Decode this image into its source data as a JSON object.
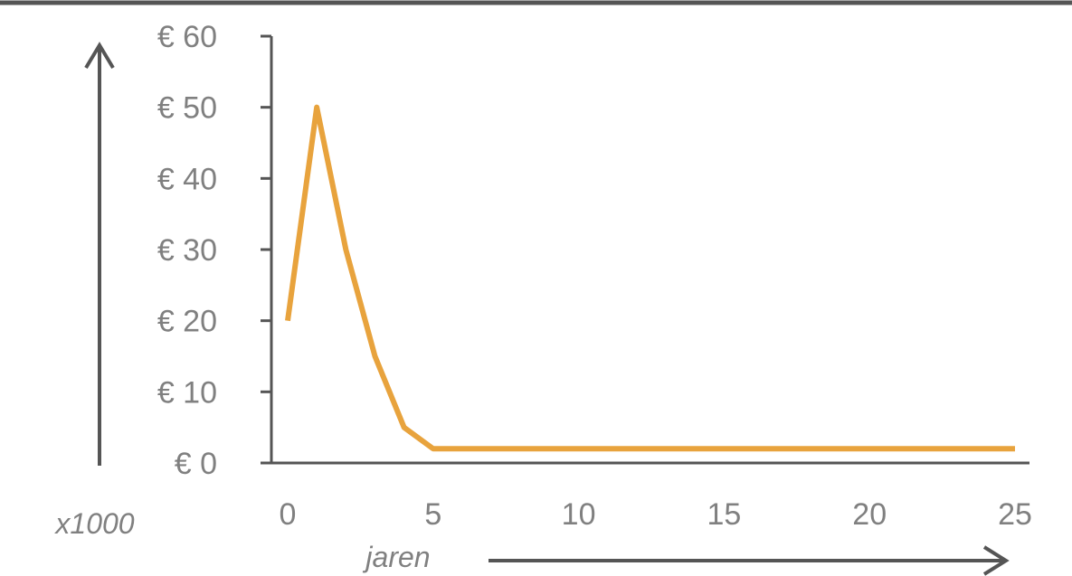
{
  "chart_data": {
    "type": "line",
    "title": "",
    "xlabel": "jaren",
    "ylabel": "",
    "y_unit_note": "x1000",
    "x": [
      0,
      1,
      2,
      3,
      4,
      5,
      6,
      7,
      8,
      9,
      10,
      11,
      12,
      13,
      14,
      15,
      16,
      17,
      18,
      19,
      20,
      21,
      22,
      23,
      24,
      25
    ],
    "series": [
      {
        "values": [
          20,
          50,
          30,
          15,
          5,
          2,
          2,
          2,
          2,
          2,
          2,
          2,
          2,
          2,
          2,
          2,
          2,
          2,
          2,
          2,
          2,
          2,
          2,
          2,
          2,
          2
        ],
        "color": "#e8a33d"
      }
    ],
    "xlim": [
      0,
      25
    ],
    "ylim": [
      0,
      60
    ],
    "x_ticks": [
      0,
      5,
      10,
      15,
      20,
      25
    ],
    "x_tick_labels": [
      "0",
      "5",
      "10",
      "15",
      "20",
      "25"
    ],
    "y_ticks": [
      0,
      10,
      20,
      30,
      40,
      50,
      60
    ],
    "y_tick_labels": [
      "€ 0",
      "€ 10",
      "€ 20",
      "€ 30",
      "€ 40",
      "€ 50",
      "€ 60"
    ],
    "grid": false,
    "legend": "none",
    "axis_color": "#555555",
    "text_color": "#808080",
    "frame_color": "#555555"
  }
}
